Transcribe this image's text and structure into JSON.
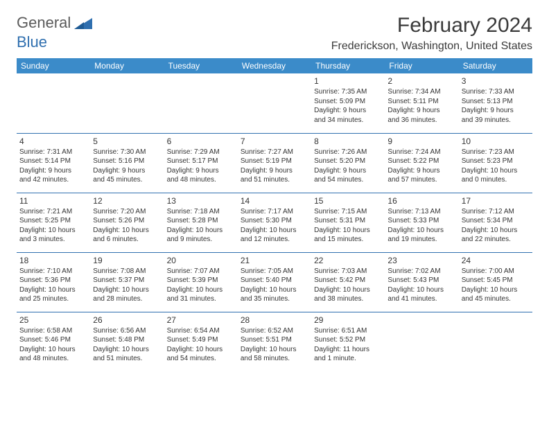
{
  "logo": {
    "word1": "General",
    "word2": "Blue"
  },
  "title": "February 2024",
  "location": "Frederickson, Washington, United States",
  "colors": {
    "header_bg": "#3b8bc9",
    "header_text": "#ffffff",
    "rule": "#2f6faf",
    "logo_gray": "#5a5a5a",
    "logo_blue": "#2f6faf",
    "text": "#333333",
    "page_bg": "#ffffff"
  },
  "day_headers": [
    "Sunday",
    "Monday",
    "Tuesday",
    "Wednesday",
    "Thursday",
    "Friday",
    "Saturday"
  ],
  "weeks": [
    [
      null,
      null,
      null,
      null,
      {
        "n": "1",
        "sr": "Sunrise: 7:35 AM",
        "ss": "Sunset: 5:09 PM",
        "d1": "Daylight: 9 hours",
        "d2": "and 34 minutes."
      },
      {
        "n": "2",
        "sr": "Sunrise: 7:34 AM",
        "ss": "Sunset: 5:11 PM",
        "d1": "Daylight: 9 hours",
        "d2": "and 36 minutes."
      },
      {
        "n": "3",
        "sr": "Sunrise: 7:33 AM",
        "ss": "Sunset: 5:13 PM",
        "d1": "Daylight: 9 hours",
        "d2": "and 39 minutes."
      }
    ],
    [
      {
        "n": "4",
        "sr": "Sunrise: 7:31 AM",
        "ss": "Sunset: 5:14 PM",
        "d1": "Daylight: 9 hours",
        "d2": "and 42 minutes."
      },
      {
        "n": "5",
        "sr": "Sunrise: 7:30 AM",
        "ss": "Sunset: 5:16 PM",
        "d1": "Daylight: 9 hours",
        "d2": "and 45 minutes."
      },
      {
        "n": "6",
        "sr": "Sunrise: 7:29 AM",
        "ss": "Sunset: 5:17 PM",
        "d1": "Daylight: 9 hours",
        "d2": "and 48 minutes."
      },
      {
        "n": "7",
        "sr": "Sunrise: 7:27 AM",
        "ss": "Sunset: 5:19 PM",
        "d1": "Daylight: 9 hours",
        "d2": "and 51 minutes."
      },
      {
        "n": "8",
        "sr": "Sunrise: 7:26 AM",
        "ss": "Sunset: 5:20 PM",
        "d1": "Daylight: 9 hours",
        "d2": "and 54 minutes."
      },
      {
        "n": "9",
        "sr": "Sunrise: 7:24 AM",
        "ss": "Sunset: 5:22 PM",
        "d1": "Daylight: 9 hours",
        "d2": "and 57 minutes."
      },
      {
        "n": "10",
        "sr": "Sunrise: 7:23 AM",
        "ss": "Sunset: 5:23 PM",
        "d1": "Daylight: 10 hours",
        "d2": "and 0 minutes."
      }
    ],
    [
      {
        "n": "11",
        "sr": "Sunrise: 7:21 AM",
        "ss": "Sunset: 5:25 PM",
        "d1": "Daylight: 10 hours",
        "d2": "and 3 minutes."
      },
      {
        "n": "12",
        "sr": "Sunrise: 7:20 AM",
        "ss": "Sunset: 5:26 PM",
        "d1": "Daylight: 10 hours",
        "d2": "and 6 minutes."
      },
      {
        "n": "13",
        "sr": "Sunrise: 7:18 AM",
        "ss": "Sunset: 5:28 PM",
        "d1": "Daylight: 10 hours",
        "d2": "and 9 minutes."
      },
      {
        "n": "14",
        "sr": "Sunrise: 7:17 AM",
        "ss": "Sunset: 5:30 PM",
        "d1": "Daylight: 10 hours",
        "d2": "and 12 minutes."
      },
      {
        "n": "15",
        "sr": "Sunrise: 7:15 AM",
        "ss": "Sunset: 5:31 PM",
        "d1": "Daylight: 10 hours",
        "d2": "and 15 minutes."
      },
      {
        "n": "16",
        "sr": "Sunrise: 7:13 AM",
        "ss": "Sunset: 5:33 PM",
        "d1": "Daylight: 10 hours",
        "d2": "and 19 minutes."
      },
      {
        "n": "17",
        "sr": "Sunrise: 7:12 AM",
        "ss": "Sunset: 5:34 PM",
        "d1": "Daylight: 10 hours",
        "d2": "and 22 minutes."
      }
    ],
    [
      {
        "n": "18",
        "sr": "Sunrise: 7:10 AM",
        "ss": "Sunset: 5:36 PM",
        "d1": "Daylight: 10 hours",
        "d2": "and 25 minutes."
      },
      {
        "n": "19",
        "sr": "Sunrise: 7:08 AM",
        "ss": "Sunset: 5:37 PM",
        "d1": "Daylight: 10 hours",
        "d2": "and 28 minutes."
      },
      {
        "n": "20",
        "sr": "Sunrise: 7:07 AM",
        "ss": "Sunset: 5:39 PM",
        "d1": "Daylight: 10 hours",
        "d2": "and 31 minutes."
      },
      {
        "n": "21",
        "sr": "Sunrise: 7:05 AM",
        "ss": "Sunset: 5:40 PM",
        "d1": "Daylight: 10 hours",
        "d2": "and 35 minutes."
      },
      {
        "n": "22",
        "sr": "Sunrise: 7:03 AM",
        "ss": "Sunset: 5:42 PM",
        "d1": "Daylight: 10 hours",
        "d2": "and 38 minutes."
      },
      {
        "n": "23",
        "sr": "Sunrise: 7:02 AM",
        "ss": "Sunset: 5:43 PM",
        "d1": "Daylight: 10 hours",
        "d2": "and 41 minutes."
      },
      {
        "n": "24",
        "sr": "Sunrise: 7:00 AM",
        "ss": "Sunset: 5:45 PM",
        "d1": "Daylight: 10 hours",
        "d2": "and 45 minutes."
      }
    ],
    [
      {
        "n": "25",
        "sr": "Sunrise: 6:58 AM",
        "ss": "Sunset: 5:46 PM",
        "d1": "Daylight: 10 hours",
        "d2": "and 48 minutes."
      },
      {
        "n": "26",
        "sr": "Sunrise: 6:56 AM",
        "ss": "Sunset: 5:48 PM",
        "d1": "Daylight: 10 hours",
        "d2": "and 51 minutes."
      },
      {
        "n": "27",
        "sr": "Sunrise: 6:54 AM",
        "ss": "Sunset: 5:49 PM",
        "d1": "Daylight: 10 hours",
        "d2": "and 54 minutes."
      },
      {
        "n": "28",
        "sr": "Sunrise: 6:52 AM",
        "ss": "Sunset: 5:51 PM",
        "d1": "Daylight: 10 hours",
        "d2": "and 58 minutes."
      },
      {
        "n": "29",
        "sr": "Sunrise: 6:51 AM",
        "ss": "Sunset: 5:52 PM",
        "d1": "Daylight: 11 hours",
        "d2": "and 1 minute."
      },
      null,
      null
    ]
  ]
}
